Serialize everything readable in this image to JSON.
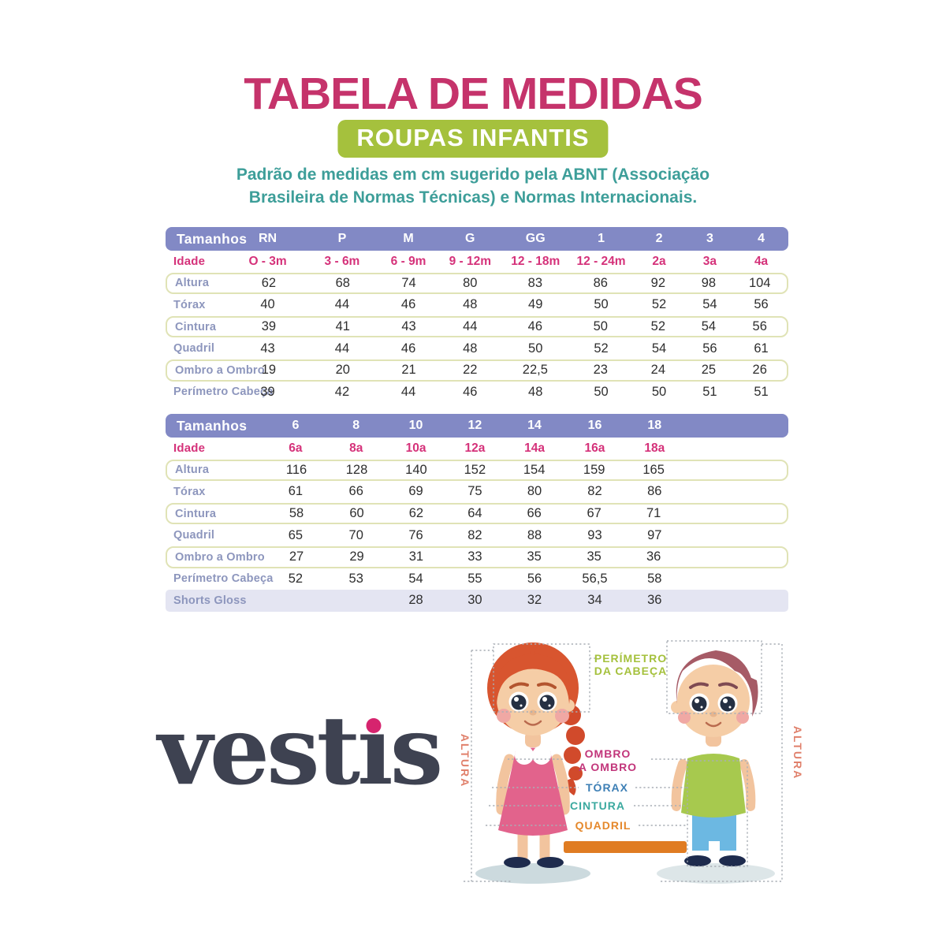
{
  "header": {
    "title": "TABELA DE MEDIDAS",
    "badge": "ROUPAS INFANTIS",
    "description_line1": "Padrão de medidas em cm sugerido pela ABNT (Associação",
    "description_line2": "Brasileira de Normas Técnicas) e Normas Internacionais."
  },
  "table_infant": {
    "header_label": "Tamanhos",
    "columns": [
      "RN",
      "P",
      "M",
      "G",
      "GG",
      "1",
      "2",
      "3",
      "4"
    ],
    "age_row": {
      "label": "Idade",
      "values": [
        "O - 3m",
        "3 - 6m",
        "6 - 9m",
        "9 - 12m",
        "12 - 18m",
        "12 - 24m",
        "2a",
        "3a",
        "4a"
      ]
    },
    "rows": [
      {
        "label": "Altura",
        "variant": "outlined",
        "values": [
          "62",
          "68",
          "74",
          "80",
          "83",
          "86",
          "92",
          "98",
          "104"
        ]
      },
      {
        "label": "Tórax",
        "variant": "plain",
        "values": [
          "40",
          "44",
          "46",
          "48",
          "49",
          "50",
          "52",
          "54",
          "56"
        ]
      },
      {
        "label": "Cintura",
        "variant": "outlined",
        "values": [
          "39",
          "41",
          "43",
          "44",
          "46",
          "50",
          "52",
          "54",
          "56"
        ]
      },
      {
        "label": "Quadril",
        "variant": "plain",
        "values": [
          "43",
          "44",
          "46",
          "48",
          "50",
          "52",
          "54",
          "56",
          "61"
        ]
      },
      {
        "label": "Ombro a Ombro",
        "variant": "outlined",
        "values": [
          "19",
          "20",
          "21",
          "22",
          "22,5",
          "23",
          "24",
          "25",
          "26"
        ]
      },
      {
        "label": "Perímetro Cabeça",
        "variant": "plain",
        "values": [
          "39",
          "42",
          "44",
          "46",
          "48",
          "50",
          "50",
          "51",
          "51"
        ]
      }
    ]
  },
  "table_kids": {
    "header_label": "Tamanhos",
    "columns": [
      "6",
      "8",
      "10",
      "12",
      "14",
      "16",
      "18"
    ],
    "age_row": {
      "label": "Idade",
      "values": [
        "6a",
        "8a",
        "10a",
        "12a",
        "14a",
        "16a",
        "18a"
      ]
    },
    "rows": [
      {
        "label": "Altura",
        "variant": "outlined",
        "values": [
          "116",
          "128",
          "140",
          "152",
          "154",
          "159",
          "165"
        ]
      },
      {
        "label": "Tórax",
        "variant": "plain",
        "values": [
          "61",
          "66",
          "69",
          "75",
          "80",
          "82",
          "86"
        ]
      },
      {
        "label": "Cintura",
        "variant": "outlined",
        "values": [
          "58",
          "60",
          "62",
          "64",
          "66",
          "67",
          "71"
        ]
      },
      {
        "label": "Quadril",
        "variant": "plain",
        "values": [
          "65",
          "70",
          "76",
          "82",
          "88",
          "93",
          "97"
        ]
      },
      {
        "label": "Ombro a Ombro",
        "variant": "outlined",
        "values": [
          "27",
          "29",
          "31",
          "33",
          "35",
          "35",
          "36"
        ]
      },
      {
        "label": "Perímetro Cabeça",
        "variant": "plain",
        "values": [
          "52",
          "53",
          "54",
          "55",
          "56",
          "56,5",
          "58"
        ]
      },
      {
        "label": "Shorts Gloss",
        "variant": "shaded",
        "values": [
          "",
          "",
          "28",
          "30",
          "32",
          "34",
          "36"
        ]
      }
    ]
  },
  "figure": {
    "label_head_line1": "PERÍMETRO",
    "label_head_line2": "DA CABEÇA",
    "label_shoulder_line1": "OMBRO",
    "label_shoulder_line2": "A OMBRO",
    "label_chest": "TÓRAX",
    "label_waist": "CINTURA",
    "label_hip": "QUADRIL",
    "label_height_left": "ALTURA",
    "label_height_right": "ALTURA"
  },
  "logo": {
    "text": "vestis"
  },
  "colors": {
    "title_magenta": "#c5336b",
    "badge_green": "#a5c13d",
    "description_teal": "#3d9e99",
    "table_header_purple": "#8289c5",
    "age_pink": "#d5327a",
    "row_label_gray": "#8d96bd",
    "row_outline": "#e0e3b6",
    "shaded_row": "#e4e5f2",
    "label_chest_blue": "#3d7fb5",
    "label_waist_teal": "#3ba99f",
    "label_hip_orange": "#e5882b",
    "label_height_salmon": "#e0806b",
    "logo_dark": "#3e4251",
    "logo_dot_pink": "#d6246e"
  }
}
